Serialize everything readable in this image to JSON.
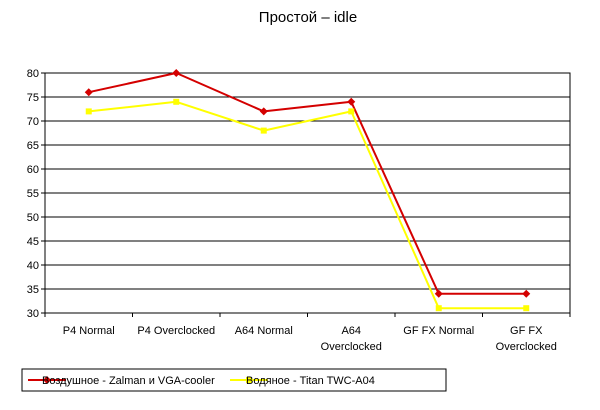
{
  "chart_data": {
    "type": "line",
    "title": "Простой – idle",
    "xlabel": "",
    "ylabel": "",
    "categories": [
      [
        "P4 Normal"
      ],
      [
        "P4 Overclocked"
      ],
      [
        "A64 Normal"
      ],
      [
        "A64",
        "Overclocked"
      ],
      [
        "GF FX Normal"
      ],
      [
        "GF FX",
        "Overclocked"
      ]
    ],
    "ylim": [
      30,
      80
    ],
    "yticks": [
      30,
      35,
      40,
      45,
      50,
      55,
      60,
      65,
      70,
      75,
      80
    ],
    "grid": true,
    "legend_position": "bottom",
    "series": [
      {
        "name": "Воздушное - Zalman и VGA-cooler",
        "color": "#d40000",
        "marker": "diamond",
        "values": [
          76,
          80,
          72,
          74,
          34,
          34
        ]
      },
      {
        "name": "Водяное - Titan TWC-A04",
        "color": "#ffff00",
        "marker": "square",
        "values": [
          72,
          74,
          68,
          72,
          31,
          31
        ]
      }
    ]
  }
}
